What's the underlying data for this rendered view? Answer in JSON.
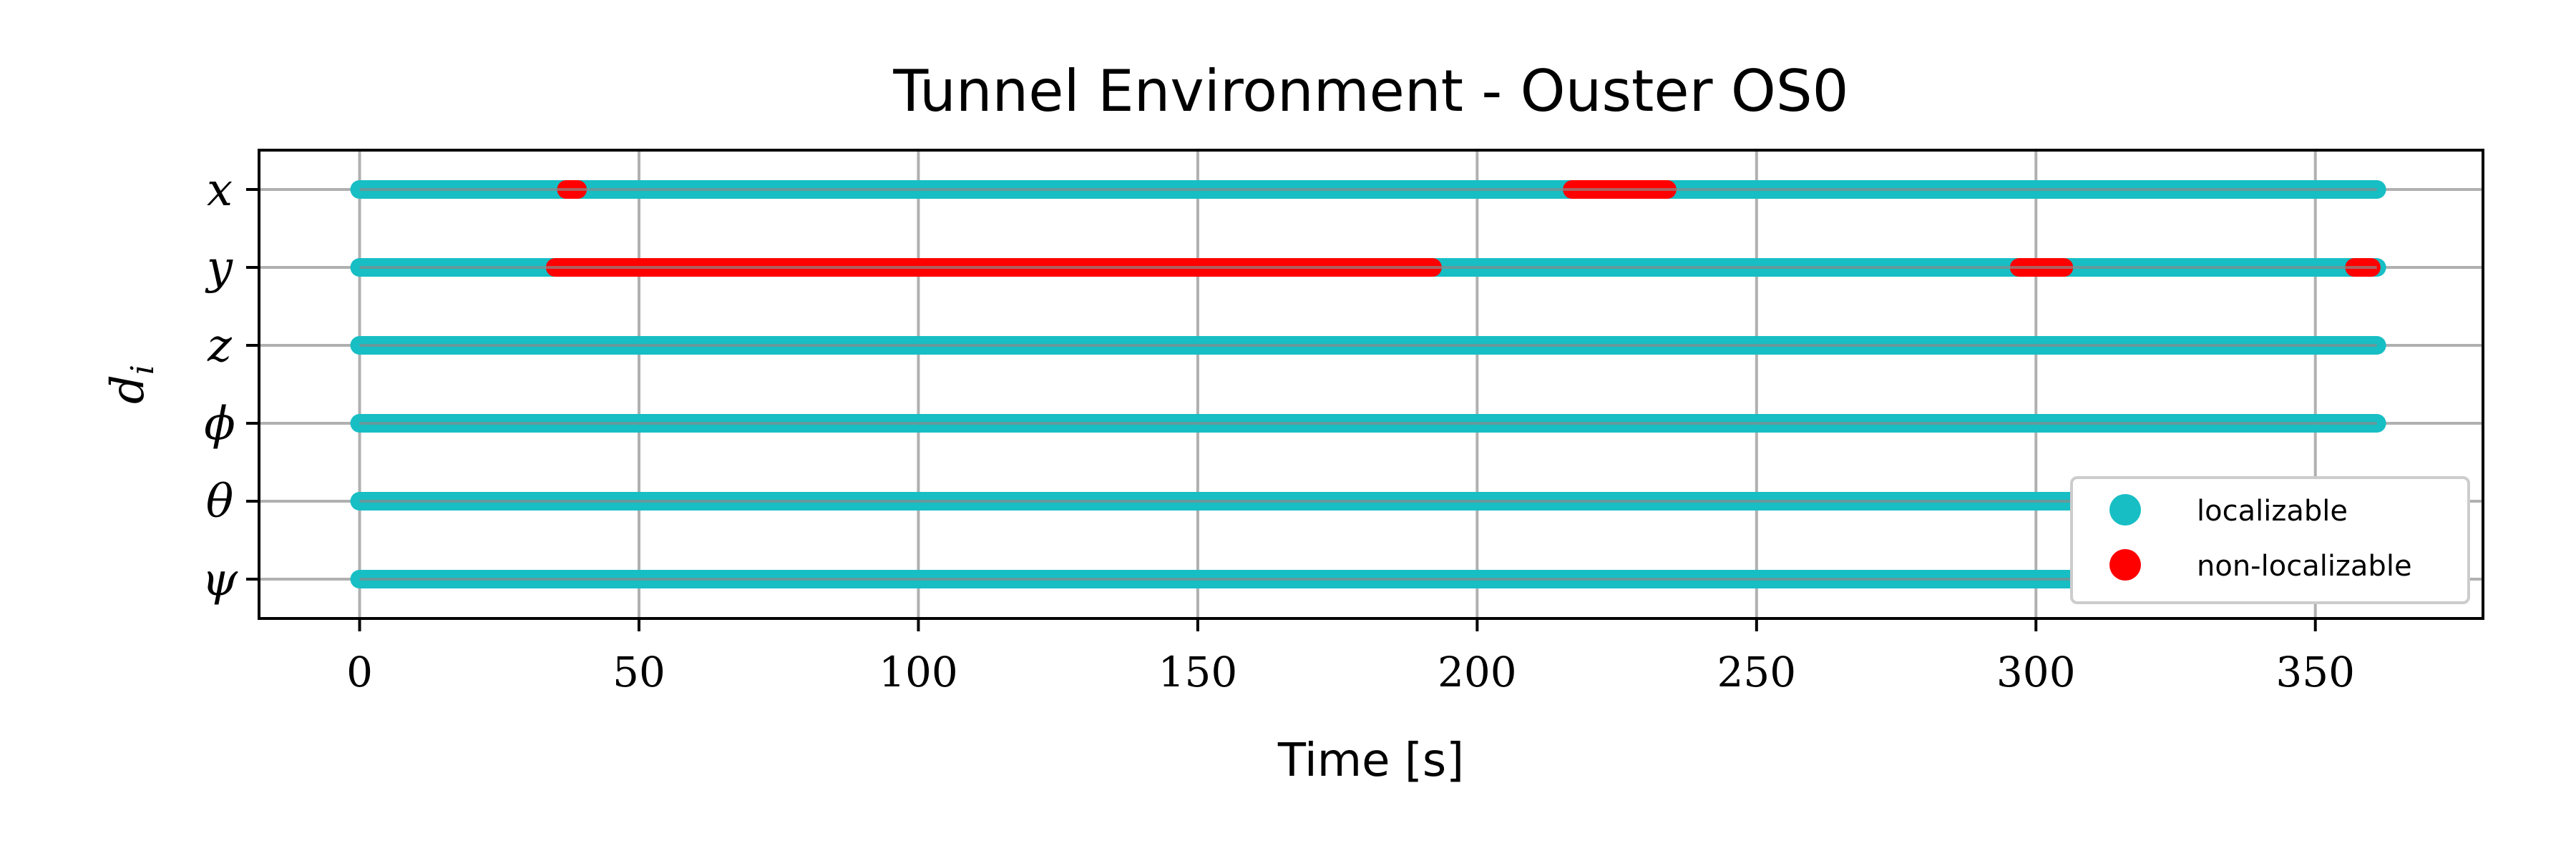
{
  "chart_data": {
    "type": "scatter",
    "title": "Tunnel Environment - Ouster OS0",
    "xlabel": "Time [s]",
    "ylabel": "d_i",
    "xlim": [
      -18,
      380
    ],
    "x_ticks": [
      0,
      50,
      100,
      150,
      200,
      250,
      300,
      350
    ],
    "grid": true,
    "legend_placement": "lower-right",
    "categories": [
      "x",
      "y",
      "z",
      "ϕ",
      "θ",
      "ψ"
    ],
    "time_range": [
      0,
      361
    ],
    "series": [
      {
        "name": "localizable",
        "color": "#17bec4"
      },
      {
        "name": "non-localizable",
        "color": "#ff0000"
      }
    ],
    "non_localizable_intervals": {
      "x": [
        [
          37,
          39
        ],
        [
          217,
          234
        ]
      ],
      "y": [
        [
          35,
          192
        ],
        [
          297,
          305
        ],
        [
          357,
          360
        ]
      ],
      "z": [],
      "ϕ": [],
      "θ": [],
      "ψ": []
    }
  }
}
